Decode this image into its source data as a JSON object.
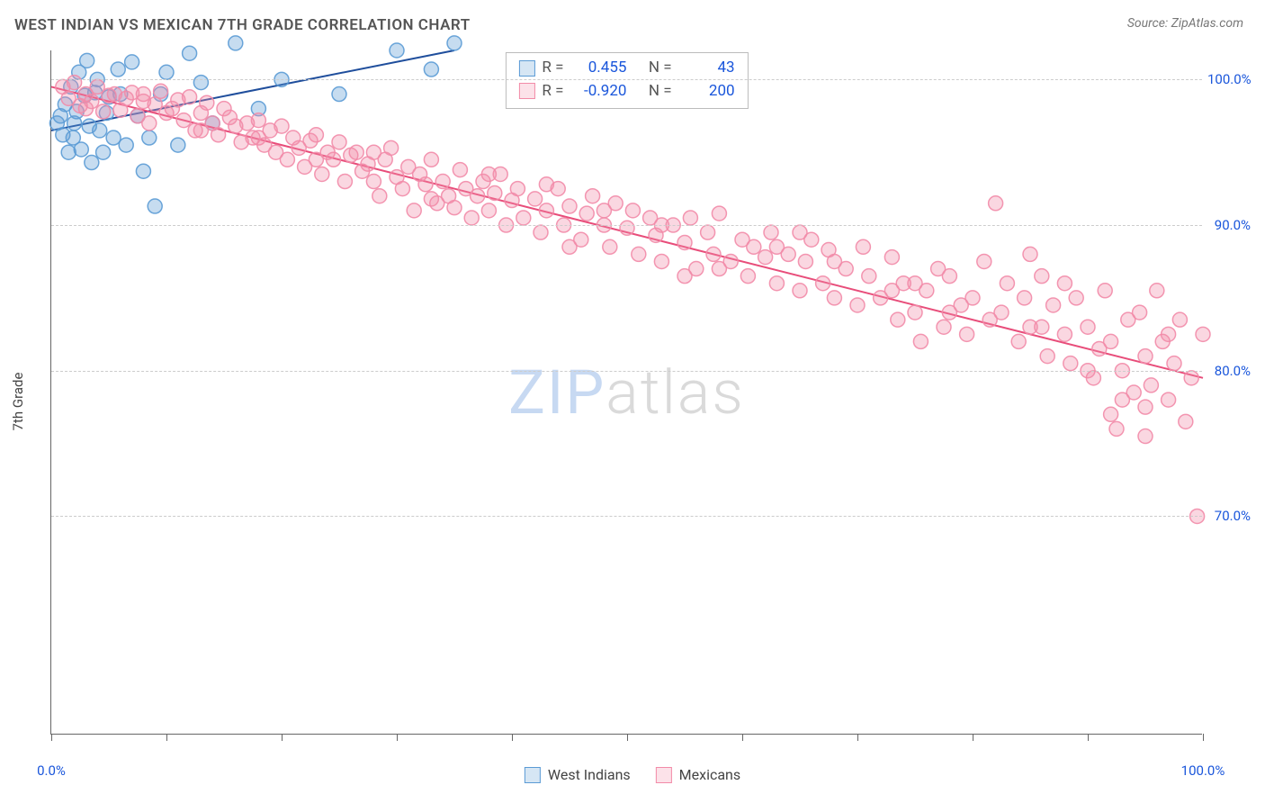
{
  "title": "WEST INDIAN VS MEXICAN 7TH GRADE CORRELATION CHART",
  "source": "Source: ZipAtlas.com",
  "ylabel": "7th Grade",
  "watermark": {
    "part1": "ZIP",
    "part2": "atlas"
  },
  "chart": {
    "type": "scatter",
    "background_color": "#ffffff",
    "grid_color": "#cccccc",
    "axis_color": "#666666",
    "label_color": "#1a56db",
    "label_fontsize": 15,
    "title_fontsize": 17,
    "xlim": [
      0,
      100
    ],
    "ylim": [
      55,
      102
    ],
    "x_ticks": [
      0,
      10,
      20,
      30,
      40,
      50,
      60,
      70,
      80,
      90,
      100
    ],
    "x_tick_labels": {
      "0": "0.0%",
      "100": "100.0%"
    },
    "y_ticks": [
      70,
      80,
      90,
      100
    ],
    "y_tick_labels": {
      "70": "70.0%",
      "80": "80.0%",
      "90": "90.0%",
      "100": "100.0%"
    },
    "marker_radius": 8,
    "marker_fill_opacity": 0.35,
    "marker_stroke_opacity": 0.9,
    "trend_line_width": 2,
    "series": [
      {
        "key": "west_indians",
        "name": "West Indians",
        "color": "#5b9bd5",
        "line_color": "#1f4e9c",
        "R": "0.455",
        "N": "43",
        "trend": {
          "x1": 0,
          "y1": 96.5,
          "x2": 35,
          "y2": 102
        },
        "points": [
          [
            0.5,
            97.0
          ],
          [
            0.8,
            97.5
          ],
          [
            1.0,
            96.2
          ],
          [
            1.2,
            98.3
          ],
          [
            1.5,
            95.0
          ],
          [
            1.7,
            99.5
          ],
          [
            1.9,
            96.0
          ],
          [
            2.0,
            97.0
          ],
          [
            2.2,
            97.8
          ],
          [
            2.4,
            100.5
          ],
          [
            2.6,
            95.2
          ],
          [
            2.9,
            98.9
          ],
          [
            3.1,
            101.3
          ],
          [
            3.3,
            96.8
          ],
          [
            3.5,
            94.3
          ],
          [
            3.8,
            99.1
          ],
          [
            4.0,
            100.0
          ],
          [
            4.2,
            96.5
          ],
          [
            4.5,
            95.0
          ],
          [
            4.8,
            97.7
          ],
          [
            5.0,
            98.8
          ],
          [
            5.4,
            96.0
          ],
          [
            5.8,
            100.7
          ],
          [
            6.0,
            99.0
          ],
          [
            6.5,
            95.5
          ],
          [
            7.0,
            101.2
          ],
          [
            7.5,
            97.5
          ],
          [
            8.0,
            93.7
          ],
          [
            8.5,
            96.0
          ],
          [
            9.0,
            91.3
          ],
          [
            9.5,
            99.0
          ],
          [
            10.0,
            100.5
          ],
          [
            11.0,
            95.5
          ],
          [
            12.0,
            101.8
          ],
          [
            13.0,
            99.8
          ],
          [
            14.0,
            97.0
          ],
          [
            16.0,
            102.5
          ],
          [
            18.0,
            98.0
          ],
          [
            20.0,
            100.0
          ],
          [
            25.0,
            99.0
          ],
          [
            30.0,
            102.0
          ],
          [
            33.0,
            100.7
          ],
          [
            35.0,
            102.5
          ]
        ]
      },
      {
        "key": "mexicans",
        "name": "Mexicans",
        "color": "#f28ba8",
        "line_color": "#e84d7a",
        "R": "-0.920",
        "N": "200",
        "trend": {
          "x1": 0,
          "y1": 99.5,
          "x2": 100,
          "y2": 79.5
        },
        "points": [
          [
            1.0,
            99.5
          ],
          [
            1.5,
            98.7
          ],
          [
            2.0,
            99.8
          ],
          [
            2.5,
            98.2
          ],
          [
            3.0,
            99.0
          ],
          [
            3.5,
            98.5
          ],
          [
            4.0,
            99.5
          ],
          [
            4.5,
            97.8
          ],
          [
            5.0,
            98.9
          ],
          [
            5.5,
            99.0
          ],
          [
            6.0,
            97.9
          ],
          [
            6.5,
            98.7
          ],
          [
            7.0,
            99.1
          ],
          [
            7.5,
            97.5
          ],
          [
            8.0,
            98.5
          ],
          [
            8.5,
            97.0
          ],
          [
            9.0,
            98.3
          ],
          [
            9.5,
            99.2
          ],
          [
            10.0,
            97.7
          ],
          [
            10.5,
            98.0
          ],
          [
            11.0,
            98.6
          ],
          [
            11.5,
            97.2
          ],
          [
            12.0,
            98.8
          ],
          [
            12.5,
            96.5
          ],
          [
            13.0,
            97.7
          ],
          [
            13.5,
            98.4
          ],
          [
            14.0,
            97.0
          ],
          [
            14.5,
            96.2
          ],
          [
            15.0,
            98.0
          ],
          [
            15.5,
            97.4
          ],
          [
            16.0,
            96.8
          ],
          [
            16.5,
            95.7
          ],
          [
            17.0,
            97.0
          ],
          [
            17.5,
            96.0
          ],
          [
            18.0,
            97.2
          ],
          [
            18.5,
            95.5
          ],
          [
            19.0,
            96.5
          ],
          [
            19.5,
            95.0
          ],
          [
            20.0,
            96.8
          ],
          [
            20.5,
            94.5
          ],
          [
            21.0,
            96.0
          ],
          [
            21.5,
            95.3
          ],
          [
            22.0,
            94.0
          ],
          [
            22.5,
            95.8
          ],
          [
            23.0,
            96.2
          ],
          [
            23.5,
            93.5
          ],
          [
            24.0,
            95.0
          ],
          [
            24.5,
            94.5
          ],
          [
            25.0,
            95.7
          ],
          [
            25.5,
            93.0
          ],
          [
            26.0,
            94.8
          ],
          [
            26.5,
            95.0
          ],
          [
            27.0,
            93.7
          ],
          [
            27.5,
            94.2
          ],
          [
            28.0,
            93.0
          ],
          [
            28.5,
            92.0
          ],
          [
            29.0,
            94.5
          ],
          [
            29.5,
            95.3
          ],
          [
            30.0,
            93.3
          ],
          [
            30.5,
            92.5
          ],
          [
            31.0,
            94.0
          ],
          [
            31.5,
            91.0
          ],
          [
            32.0,
            93.5
          ],
          [
            32.5,
            92.8
          ],
          [
            33.0,
            94.5
          ],
          [
            33.5,
            91.5
          ],
          [
            34.0,
            93.0
          ],
          [
            34.5,
            92.0
          ],
          [
            35.0,
            91.2
          ],
          [
            35.5,
            93.8
          ],
          [
            36.0,
            92.5
          ],
          [
            36.5,
            90.5
          ],
          [
            37.0,
            92.0
          ],
          [
            37.5,
            93.0
          ],
          [
            38.0,
            91.0
          ],
          [
            38.5,
            92.2
          ],
          [
            39.0,
            93.5
          ],
          [
            39.5,
            90.0
          ],
          [
            40.0,
            91.7
          ],
          [
            40.5,
            92.5
          ],
          [
            41.0,
            90.5
          ],
          [
            42.0,
            91.8
          ],
          [
            42.5,
            89.5
          ],
          [
            43.0,
            91.0
          ],
          [
            44.0,
            92.5
          ],
          [
            44.5,
            90.0
          ],
          [
            45.0,
            91.3
          ],
          [
            46.0,
            89.0
          ],
          [
            46.5,
            90.8
          ],
          [
            47.0,
            92.0
          ],
          [
            48.0,
            90.0
          ],
          [
            48.5,
            88.5
          ],
          [
            49.0,
            91.5
          ],
          [
            50.0,
            89.8
          ],
          [
            50.5,
            91.0
          ],
          [
            51.0,
            88.0
          ],
          [
            52.0,
            90.5
          ],
          [
            52.5,
            89.3
          ],
          [
            53.0,
            87.5
          ],
          [
            54.0,
            90.0
          ],
          [
            55.0,
            88.8
          ],
          [
            55.5,
            90.5
          ],
          [
            56.0,
            87.0
          ],
          [
            57.0,
            89.5
          ],
          [
            57.5,
            88.0
          ],
          [
            58.0,
            90.8
          ],
          [
            59.0,
            87.5
          ],
          [
            60.0,
            89.0
          ],
          [
            60.5,
            86.5
          ],
          [
            61.0,
            88.5
          ],
          [
            62.0,
            87.8
          ],
          [
            62.5,
            89.5
          ],
          [
            63.0,
            86.0
          ],
          [
            64.0,
            88.0
          ],
          [
            65.0,
            85.5
          ],
          [
            65.5,
            87.5
          ],
          [
            66.0,
            89.0
          ],
          [
            67.0,
            86.0
          ],
          [
            67.5,
            88.3
          ],
          [
            68.0,
            85.0
          ],
          [
            69.0,
            87.0
          ],
          [
            70.0,
            84.5
          ],
          [
            70.5,
            88.5
          ],
          [
            71.0,
            86.5
          ],
          [
            72.0,
            85.0
          ],
          [
            73.0,
            87.8
          ],
          [
            73.5,
            83.5
          ],
          [
            74.0,
            86.0
          ],
          [
            75.0,
            84.0
          ],
          [
            75.5,
            82.0
          ],
          [
            76.0,
            85.5
          ],
          [
            77.0,
            87.0
          ],
          [
            77.5,
            83.0
          ],
          [
            78.0,
            86.5
          ],
          [
            79.0,
            84.5
          ],
          [
            79.5,
            82.5
          ],
          [
            80.0,
            85.0
          ],
          [
            81.0,
            87.5
          ],
          [
            81.5,
            83.5
          ],
          [
            82.0,
            91.5
          ],
          [
            82.5,
            84.0
          ],
          [
            83.0,
            86.0
          ],
          [
            84.0,
            82.0
          ],
          [
            84.5,
            85.0
          ],
          [
            85.0,
            83.0
          ],
          [
            86.0,
            86.5
          ],
          [
            86.5,
            81.0
          ],
          [
            87.0,
            84.5
          ],
          [
            88.0,
            82.5
          ],
          [
            88.5,
            80.5
          ],
          [
            89.0,
            85.0
          ],
          [
            90.0,
            83.0
          ],
          [
            90.5,
            79.5
          ],
          [
            91.0,
            81.5
          ],
          [
            91.5,
            85.5
          ],
          [
            92.0,
            82.0
          ],
          [
            92.5,
            76.0
          ],
          [
            93.0,
            80.0
          ],
          [
            93.5,
            83.5
          ],
          [
            94.0,
            78.5
          ],
          [
            94.5,
            84.0
          ],
          [
            95.0,
            81.0
          ],
          [
            95.5,
            79.0
          ],
          [
            96.0,
            85.5
          ],
          [
            96.5,
            82.0
          ],
          [
            97.0,
            78.0
          ],
          [
            97.5,
            80.5
          ],
          [
            98.0,
            83.5
          ],
          [
            98.5,
            76.5
          ],
          [
            99.0,
            79.5
          ],
          [
            99.5,
            70.0
          ],
          [
            100.0,
            82.5
          ],
          [
            92.0,
            77.0
          ],
          [
            95.0,
            77.5
          ],
          [
            97.0,
            82.5
          ],
          [
            88.0,
            86.0
          ],
          [
            90.0,
            80.0
          ],
          [
            93.0,
            78.0
          ],
          [
            86.0,
            83.0
          ],
          [
            78.0,
            84.0
          ],
          [
            73.0,
            85.5
          ],
          [
            68.0,
            87.5
          ],
          [
            63.0,
            88.5
          ],
          [
            58.0,
            87.0
          ],
          [
            53.0,
            90.0
          ],
          [
            48.0,
            91.0
          ],
          [
            43.0,
            92.8
          ],
          [
            38.0,
            93.5
          ],
          [
            33.0,
            91.8
          ],
          [
            28.0,
            95.0
          ],
          [
            23.0,
            94.5
          ],
          [
            18.0,
            96.0
          ],
          [
            13.0,
            96.5
          ],
          [
            8.0,
            99.0
          ],
          [
            3.0,
            98.0
          ],
          [
            45.0,
            88.5
          ],
          [
            55.0,
            86.5
          ],
          [
            65.0,
            89.5
          ],
          [
            75.0,
            86.0
          ],
          [
            85.0,
            88.0
          ],
          [
            95.0,
            75.5
          ]
        ]
      }
    ]
  },
  "stats_box": {
    "R_label": "R =",
    "N_label": "N ="
  },
  "legend": {
    "series1_label": "West Indians",
    "series2_label": "Mexicans"
  }
}
